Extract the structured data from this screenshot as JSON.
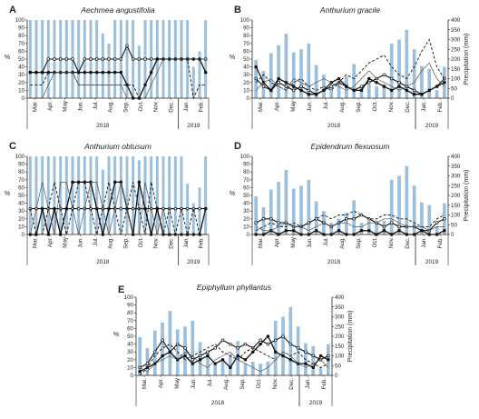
{
  "figure": {
    "year_label_main": "2018",
    "year_label_next": "2019",
    "left_axis_label": "%",
    "right_axis_label": "Precipitation (mm)",
    "left_ticks": [
      0,
      10,
      20,
      30,
      40,
      50,
      60,
      70,
      80,
      90,
      100
    ],
    "right_ticks": [
      0,
      50,
      100,
      150,
      200,
      250,
      300,
      350,
      400
    ],
    "month_labels": [
      "Mar.",
      "Apr.",
      "May",
      "Jun.",
      "Jul.",
      "Aug.",
      "Sep.",
      "Oct.",
      "Nov.",
      "Dec.",
      "Jan.",
      "Feb."
    ],
    "bar_color": "#9cbfdb",
    "line_color": "#111111"
  },
  "chart_data": [
    {
      "type": "bar",
      "letter": "A",
      "title": "Aechmea angustifolia",
      "ylim": [
        0,
        100
      ],
      "y2lim": [
        0,
        400
      ],
      "bars": [
        100,
        100,
        100,
        100,
        100,
        100,
        100,
        100,
        100,
        100,
        100,
        100,
        83,
        70,
        100,
        100,
        100,
        100,
        67,
        100,
        100,
        100,
        100,
        100,
        100,
        100,
        100,
        40,
        60,
        100
      ],
      "series": [
        {
          "style": "open",
          "values": [
            33,
            33,
            33,
            50,
            50,
            50,
            50,
            50,
            33,
            50,
            50,
            50,
            50,
            50,
            50,
            50,
            67,
            50,
            50,
            50,
            50,
            50,
            50,
            50,
            50,
            50,
            50,
            50,
            50,
            50
          ]
        },
        {
          "style": "filled",
          "values": [
            33,
            33,
            33,
            33,
            33,
            33,
            33,
            33,
            33,
            33,
            33,
            33,
            33,
            33,
            33,
            33,
            17,
            0,
            0,
            17,
            33,
            50,
            50,
            50,
            50,
            50,
            50,
            50,
            50,
            33
          ]
        },
        {
          "style": "dashed",
          "values": [
            17,
            17,
            17,
            33,
            33,
            33,
            33,
            33,
            17,
            17,
            17,
            17,
            17,
            17,
            17,
            17,
            17,
            17,
            0,
            17,
            33,
            50,
            50,
            50,
            50,
            50,
            50,
            0,
            17,
            17
          ]
        },
        {
          "style": "thin",
          "values": [
            0,
            0,
            0,
            17,
            33,
            33,
            33,
            33,
            17,
            17,
            17,
            17,
            17,
            17,
            17,
            17,
            0,
            0,
            0,
            0,
            17,
            33,
            50,
            50,
            50,
            50,
            50,
            50,
            50,
            50
          ]
        }
      ]
    },
    {
      "type": "bar",
      "letter": "B",
      "title": "Anthurium gracile",
      "ylim": [
        0,
        100
      ],
      "y2lim": [
        0,
        400
      ],
      "bars": [
        195,
        140,
        230,
        270,
        330,
        235,
        250,
        280,
        170,
        120,
        60,
        80,
        110,
        175,
        60,
        70,
        60,
        70,
        280,
        300,
        350,
        250,
        165,
        150,
        40,
        160
      ],
      "series": [
        {
          "style": "open",
          "values": [
            25,
            15,
            10,
            20,
            15,
            10,
            15,
            10,
            5,
            10,
            15,
            20,
            15,
            10,
            15,
            20,
            25,
            30,
            25,
            20,
            15,
            10,
            5,
            10,
            15,
            25
          ]
        },
        {
          "style": "filled",
          "values": [
            40,
            20,
            10,
            25,
            20,
            15,
            10,
            5,
            5,
            10,
            20,
            25,
            15,
            10,
            10,
            25,
            20,
            15,
            10,
            15,
            10,
            5,
            5,
            10,
            15,
            20
          ]
        },
        {
          "style": "dashed",
          "values": [
            20,
            30,
            20,
            15,
            10,
            20,
            25,
            15,
            10,
            15,
            10,
            20,
            30,
            25,
            35,
            45,
            50,
            55,
            40,
            30,
            25,
            40,
            60,
            75,
            40,
            25
          ]
        },
        {
          "style": "thin",
          "values": [
            10,
            20,
            25,
            15,
            10,
            25,
            20,
            15,
            20,
            25,
            20,
            15,
            10,
            15,
            25,
            35,
            25,
            20,
            15,
            10,
            15,
            20,
            35,
            45,
            25,
            15
          ]
        }
      ]
    },
    {
      "type": "bar",
      "letter": "C",
      "title": "Anthurium obtusum",
      "ylim": [
        0,
        100
      ],
      "y2lim": [
        0,
        400
      ],
      "bars": [
        100,
        100,
        100,
        100,
        100,
        100,
        100,
        100,
        100,
        100,
        100,
        100,
        83,
        100,
        100,
        100,
        100,
        100,
        95,
        100,
        100,
        100,
        100,
        100,
        100,
        100,
        65,
        40,
        60,
        100
      ],
      "series": [
        {
          "style": "open",
          "values": [
            33,
            33,
            33,
            33,
            33,
            33,
            33,
            33,
            33,
            33,
            33,
            33,
            33,
            33,
            33,
            33,
            33,
            33,
            33,
            33,
            33,
            33,
            33,
            33,
            33,
            33,
            33,
            33,
            33,
            33
          ]
        },
        {
          "style": "filled",
          "values": [
            0,
            0,
            33,
            0,
            33,
            0,
            33,
            67,
            67,
            67,
            67,
            33,
            0,
            33,
            67,
            67,
            33,
            0,
            67,
            33,
            0,
            33,
            0,
            0,
            0,
            0,
            0,
            0,
            0,
            33
          ]
        },
        {
          "style": "dashed",
          "values": [
            33,
            0,
            0,
            33,
            67,
            33,
            0,
            33,
            67,
            67,
            33,
            0,
            33,
            67,
            33,
            0,
            33,
            67,
            33,
            0,
            67,
            33,
            0,
            33,
            0,
            33,
            0,
            33,
            0,
            0
          ]
        },
        {
          "style": "thin",
          "values": [
            0,
            33,
            67,
            33,
            0,
            67,
            67,
            33,
            0,
            33,
            67,
            67,
            33,
            0,
            33,
            67,
            33,
            0,
            0,
            67,
            33,
            0,
            33,
            0,
            0,
            0,
            0,
            0,
            0,
            0
          ]
        }
      ]
    },
    {
      "type": "bar",
      "letter": "D",
      "title": "Epidendrum flexuosum",
      "ylim": [
        0,
        100
      ],
      "y2lim": [
        0,
        400
      ],
      "bars": [
        195,
        140,
        230,
        270,
        330,
        235,
        250,
        280,
        170,
        120,
        60,
        80,
        110,
        175,
        60,
        70,
        60,
        70,
        280,
        300,
        350,
        250,
        165,
        150,
        40,
        160
      ],
      "series": [
        {
          "style": "open",
          "values": [
            15,
            20,
            20,
            15,
            15,
            10,
            10,
            15,
            20,
            15,
            10,
            15,
            20,
            20,
            25,
            20,
            15,
            10,
            15,
            10,
            10,
            10,
            5,
            5,
            15,
            20
          ]
        },
        {
          "style": "filled",
          "values": [
            0,
            0,
            5,
            0,
            5,
            5,
            0,
            0,
            5,
            0,
            0,
            5,
            0,
            0,
            5,
            5,
            0,
            5,
            0,
            5,
            0,
            0,
            5,
            0,
            0,
            5
          ]
        },
        {
          "style": "dashed",
          "values": [
            5,
            10,
            15,
            10,
            10,
            15,
            10,
            15,
            20,
            25,
            20,
            25,
            25,
            30,
            25,
            20,
            20,
            25,
            25,
            20,
            20,
            15,
            10,
            10,
            20,
            25
          ]
        },
        {
          "style": "thin",
          "values": [
            10,
            5,
            5,
            10,
            15,
            10,
            10,
            5,
            10,
            15,
            10,
            15,
            15,
            10,
            10,
            15,
            15,
            20,
            20,
            15,
            10,
            10,
            10,
            5,
            10,
            10
          ]
        }
      ]
    },
    {
      "type": "bar",
      "letter": "E",
      "title": "Epiphyllum phyllantus",
      "ylim": [
        0,
        100
      ],
      "y2lim": [
        0,
        400
      ],
      "bars": [
        195,
        140,
        230,
        270,
        330,
        235,
        250,
        280,
        170,
        120,
        60,
        80,
        110,
        175,
        60,
        70,
        60,
        70,
        280,
        300,
        350,
        250,
        165,
        150,
        40,
        160
      ],
      "series": [
        {
          "style": "open",
          "values": [
            10,
            15,
            30,
            45,
            30,
            40,
            35,
            20,
            25,
            30,
            35,
            45,
            40,
            35,
            40,
            35,
            45,
            40,
            45,
            50,
            40,
            35,
            30,
            25,
            20,
            25
          ]
        },
        {
          "style": "filled",
          "values": [
            5,
            10,
            15,
            25,
            30,
            20,
            25,
            15,
            20,
            25,
            15,
            20,
            10,
            25,
            20,
            30,
            40,
            50,
            30,
            25,
            20,
            15,
            15,
            10,
            25,
            20
          ]
        },
        {
          "style": "dashed",
          "values": [
            0,
            10,
            25,
            35,
            40,
            30,
            20,
            25,
            30,
            35,
            40,
            30,
            25,
            20,
            30,
            35,
            30,
            25,
            20,
            30,
            25,
            30,
            20,
            15,
            10,
            15
          ]
        },
        {
          "style": "thin",
          "values": [
            10,
            5,
            15,
            20,
            25,
            20,
            30,
            25,
            15,
            10,
            20,
            25,
            30,
            20,
            15,
            10,
            5,
            10,
            20,
            30,
            25,
            15,
            10,
            15,
            20,
            10
          ]
        }
      ]
    }
  ]
}
